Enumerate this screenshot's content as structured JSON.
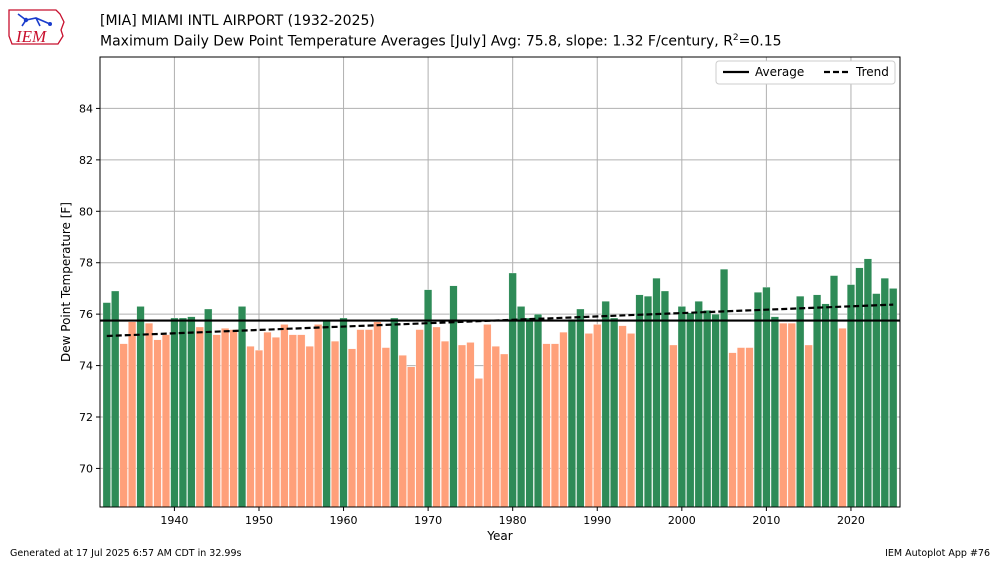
{
  "header": {
    "title_line1": "[MIA] MIAMI INTL AIRPORT (1932-2025)",
    "title_line2_prefix": "Maximum Daily Dew Point Temperature Averages [July]  Avg: 75.8, slope: 1.32 F/century, R",
    "title_line2_sup": "2",
    "title_line2_suffix": "=0.15"
  },
  "logo": {
    "text": "IEM"
  },
  "footer": {
    "left": "Generated at 17 Jul 2025 6:57 AM CDT in 32.99s",
    "right": "IEM Autoplot App #76"
  },
  "colors": {
    "above": "#2e8b57",
    "below": "#ffa07a",
    "average": "#000000",
    "trend": "#000000",
    "grid": "#b0b0b0"
  },
  "chart_data": {
    "type": "bar",
    "xlabel": "Year",
    "ylabel": "Dew Point Temperature [F]",
    "xlim": [
      1931.2,
      1925.8
    ],
    "ylim": [
      68.5,
      86.0
    ],
    "xticks": [
      1940,
      1950,
      1960,
      1970,
      1980,
      1990,
      2000,
      2010,
      2020
    ],
    "yticks": [
      70,
      72,
      74,
      76,
      78,
      80,
      82,
      84
    ],
    "grid": true,
    "legend_position": "top-right",
    "average": 75.75,
    "trend": {
      "start_year": 1932,
      "start_value": 75.15,
      "end_year": 2025,
      "end_value": 76.37
    },
    "legend": [
      {
        "name": "Average",
        "style": "solid"
      },
      {
        "name": "Trend",
        "style": "dashed"
      }
    ],
    "years": [
      1932,
      1933,
      1934,
      1935,
      1936,
      1937,
      1938,
      1939,
      1940,
      1941,
      1942,
      1943,
      1944,
      1945,
      1946,
      1947,
      1948,
      1949,
      1950,
      1951,
      1952,
      1953,
      1954,
      1955,
      1956,
      1957,
      1958,
      1959,
      1960,
      1961,
      1962,
      1963,
      1964,
      1965,
      1966,
      1967,
      1968,
      1969,
      1970,
      1971,
      1972,
      1973,
      1974,
      1975,
      1976,
      1977,
      1978,
      1979,
      1980,
      1981,
      1982,
      1983,
      1984,
      1985,
      1986,
      1987,
      1988,
      1989,
      1990,
      1991,
      1992,
      1993,
      1994,
      1995,
      1996,
      1997,
      1998,
      1999,
      2000,
      2001,
      2002,
      2003,
      2004,
      2005,
      2006,
      2007,
      2008,
      2009,
      2010,
      2011,
      2012,
      2013,
      2014,
      2015,
      2016,
      2017,
      2018,
      2019,
      2020,
      2021,
      2022,
      2023,
      2024,
      2025
    ],
    "values": [
      76.45,
      76.9,
      74.85,
      75.7,
      76.3,
      75.65,
      75.0,
      75.2,
      75.85,
      75.85,
      75.9,
      75.5,
      76.2,
      75.2,
      75.45,
      75.4,
      76.3,
      74.75,
      74.6,
      75.3,
      75.1,
      75.6,
      75.2,
      75.2,
      74.75,
      75.6,
      75.75,
      74.95,
      75.85,
      74.65,
      75.4,
      75.4,
      75.7,
      74.7,
      75.85,
      74.4,
      73.95,
      75.4,
      76.95,
      75.5,
      74.95,
      77.1,
      74.8,
      74.9,
      73.5,
      75.6,
      74.75,
      74.45,
      77.6,
      76.3,
      75.85,
      76.0,
      74.85,
      74.85,
      75.3,
      75.8,
      76.2,
      75.25,
      75.6,
      76.5,
      75.85,
      75.55,
      75.25,
      76.75,
      76.7,
      77.4,
      76.9,
      74.8,
      76.3,
      76.05,
      76.5,
      76.15,
      76.0,
      77.75,
      74.5,
      74.7,
      74.7,
      76.85,
      77.05,
      75.9,
      75.65,
      75.65,
      76.7,
      74.8,
      76.75,
      76.4,
      77.5,
      75.45,
      77.15,
      77.8,
      78.15,
      76.8,
      77.4,
      77.0
    ]
  }
}
